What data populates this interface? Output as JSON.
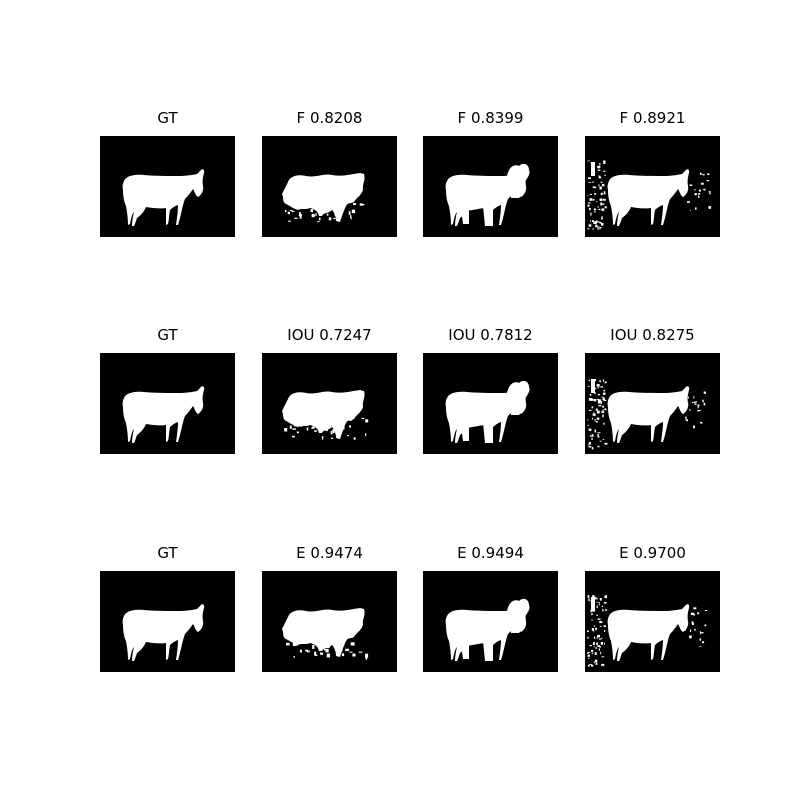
{
  "figure": {
    "rows": [
      {
        "cells": [
          {
            "title": "GT",
            "variant": "gt"
          },
          {
            "title": "F 0.8208",
            "variant": "blobby"
          },
          {
            "title": "F 0.8399",
            "variant": "bulky"
          },
          {
            "title": "F 0.8921",
            "variant": "noisy"
          }
        ]
      },
      {
        "cells": [
          {
            "title": "GT",
            "variant": "gt"
          },
          {
            "title": "IOU 0.7247",
            "variant": "blobby"
          },
          {
            "title": "IOU 0.7812",
            "variant": "bulky"
          },
          {
            "title": "IOU 0.8275",
            "variant": "noisy"
          }
        ]
      },
      {
        "cells": [
          {
            "title": "GT",
            "variant": "gt"
          },
          {
            "title": "E 0.9474",
            "variant": "blobby"
          },
          {
            "title": "E 0.9494",
            "variant": "bulky"
          },
          {
            "title": "E 0.9700",
            "variant": "noisy"
          }
        ]
      }
    ]
  },
  "colors": {
    "background": "#000000",
    "foreground": "#ffffff"
  }
}
